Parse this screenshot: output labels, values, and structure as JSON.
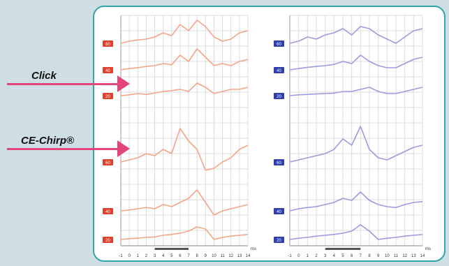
{
  "annotations": {
    "click_label": "Click",
    "chirp_label": "CE-Chirp®"
  },
  "colors": {
    "arrow": "#e2457a",
    "frame": "#2fa6a9",
    "click_trace": "#f4a586",
    "click_badge": "#e0412e",
    "chirp_trace": "#9b9be0",
    "chirp_badge": "#2f3fae",
    "grid": "#dcdcdc"
  },
  "chart_data": {
    "type": "line",
    "x": [
      -1,
      0,
      1,
      2,
      3,
      4,
      5,
      6,
      7,
      8,
      9,
      10,
      11,
      12,
      13,
      14
    ],
    "xlabel": "ms",
    "tick_labels": [
      "-1",
      "0",
      "1",
      "2",
      "3",
      "4",
      "5",
      "6",
      "7",
      "8",
      "9",
      "10",
      "11",
      "12",
      "13",
      "14"
    ],
    "panels": [
      {
        "name": "left",
        "series": [
          {
            "label": "60",
            "values": [
              0,
              0.5,
              0.8,
              1.0,
              1.5,
              2.5,
              1.8,
              4.5,
              3.0,
              5.5,
              4.0,
              1.5,
              0.5,
              1.0,
              2.5,
              3.0
            ]
          },
          {
            "label": "40",
            "values": [
              0,
              0.3,
              0.5,
              0.8,
              1.0,
              1.5,
              1.2,
              3.5,
              2.0,
              5.0,
              3.0,
              1.0,
              1.5,
              1.0,
              2.0,
              2.5
            ]
          },
          {
            "label": "20",
            "values": [
              0,
              0.2,
              0.5,
              0.3,
              0.6,
              1.0,
              1.2,
              1.5,
              1.0,
              3.0,
              2.0,
              0.5,
              1.0,
              1.5,
              1.5,
              2.0
            ]
          },
          {
            "label": "60",
            "values": [
              0,
              0.5,
              1.0,
              2.0,
              1.5,
              3.0,
              2.0,
              8.0,
              5.0,
              3.0,
              -2.0,
              -1.5,
              0,
              1.0,
              3.0,
              4.0
            ]
          },
          {
            "label": "40",
            "values": [
              0,
              0.2,
              0.5,
              0.8,
              0.5,
              1.5,
              1.0,
              2.0,
              3.0,
              5.0,
              2.0,
              -1.0,
              0,
              0.5,
              1.0,
              1.5
            ]
          },
          {
            "label": "20",
            "values": [
              0,
              0.2,
              0.3,
              0.5,
              0.6,
              1.0,
              1.2,
              1.5,
              2.0,
              3.0,
              2.5,
              0,
              0.5,
              0.8,
              1.0,
              1.2
            ]
          }
        ]
      },
      {
        "name": "right",
        "series": [
          {
            "label": "60",
            "values": [
              0,
              0.5,
              1.5,
              1.0,
              2.0,
              2.5,
              3.5,
              2.0,
              4.0,
              3.5,
              2.0,
              1.0,
              0,
              1.5,
              3.0,
              3.5
            ]
          },
          {
            "label": "40",
            "values": [
              0,
              0.3,
              0.6,
              0.8,
              1.0,
              1.3,
              2.0,
              1.5,
              3.5,
              2.0,
              1.0,
              0.5,
              0.5,
              1.5,
              2.5,
              3.0
            ]
          },
          {
            "label": "20",
            "values": [
              0,
              0.2,
              0.3,
              0.4,
              0.5,
              0.6,
              1.0,
              1.0,
              1.5,
              2.0,
              1.0,
              0.5,
              0.5,
              1.0,
              1.5,
              2.0
            ]
          },
          {
            "label": "60",
            "values": [
              0,
              0.5,
              1.0,
              1.5,
              2.0,
              3.0,
              5.5,
              4.0,
              8.5,
              3.0,
              1.0,
              0.5,
              1.5,
              2.5,
              3.5,
              4.0
            ]
          },
          {
            "label": "40",
            "values": [
              0,
              0.5,
              0.8,
              1.0,
              1.5,
              2.0,
              3.0,
              2.5,
              4.5,
              2.5,
              1.5,
              1.0,
              0.8,
              1.5,
              2.0,
              2.2
            ]
          },
          {
            "label": "20",
            "values": [
              0,
              0.3,
              0.5,
              0.8,
              1.0,
              1.2,
              1.5,
              2.0,
              3.5,
              2.0,
              0,
              0.3,
              0.5,
              0.8,
              1.0,
              1.2
            ]
          }
        ]
      }
    ]
  }
}
